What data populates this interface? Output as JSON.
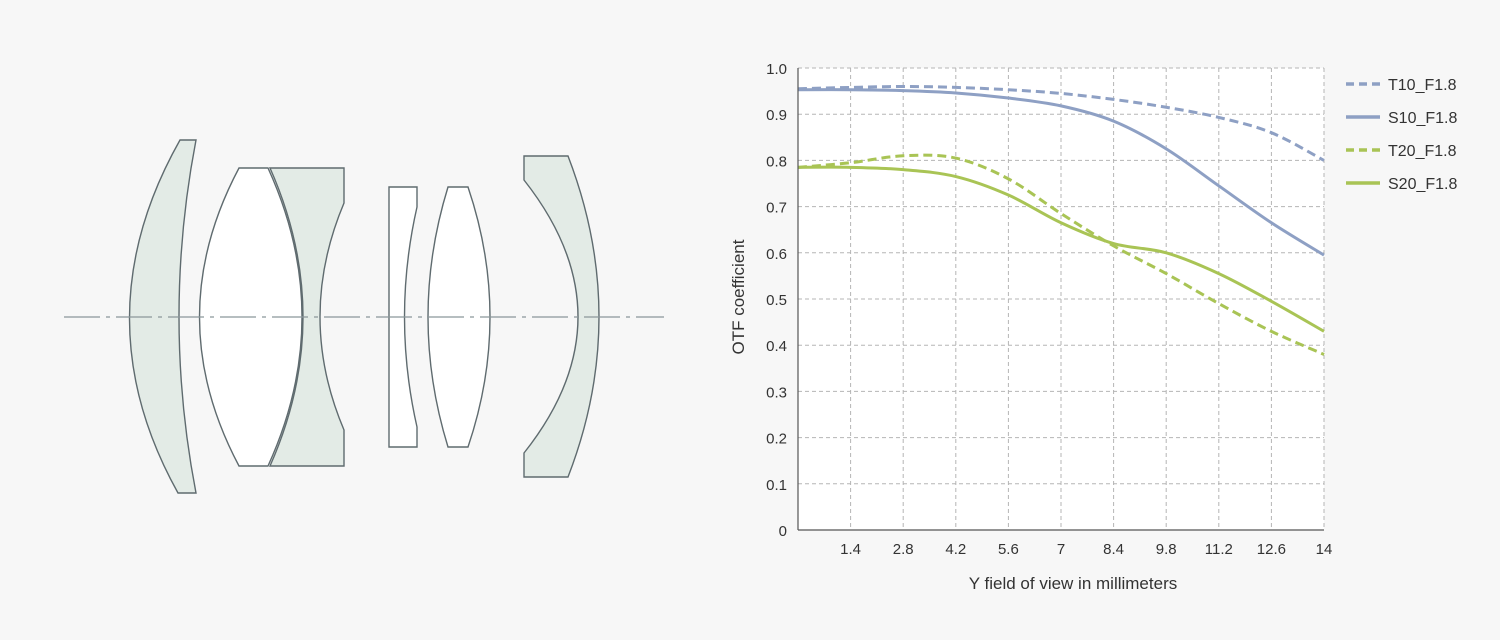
{
  "colors": {
    "background": "#f7f7f7",
    "plot_background": "#ffffff",
    "grid": "#b5b5b5",
    "axis": "#555555",
    "blue_series": "#8ea0c4",
    "green_series": "#a9c455",
    "lens_fill": "#e3ebe6",
    "lens_stroke": "#5f6b6f",
    "optical_axis": "#8a969a"
  },
  "diagram": {
    "lens_elements": [
      "front-meniscus",
      "biconvex",
      "concave",
      "thin-meniscus",
      "biconvex-small",
      "rear-meniscus"
    ]
  },
  "chart_data": {
    "type": "line",
    "xlabel": "Y field of view in millimeters",
    "ylabel": "OTF coefficient",
    "xlim": [
      0,
      14
    ],
    "ylim": [
      0,
      1.0
    ],
    "x_ticks": [
      "1.4",
      "2.8",
      "4.2",
      "5.6",
      "7",
      "8.4",
      "9.8",
      "11.2",
      "12.6",
      "14"
    ],
    "y_ticks": [
      "0",
      "0.1",
      "0.2",
      "0.3",
      "0.4",
      "0.5",
      "0.6",
      "0.7",
      "0.8",
      "0.9",
      "1.0"
    ],
    "grid": true,
    "legend_position": "right",
    "x": [
      0,
      1.4,
      2.8,
      4.2,
      5.6,
      7,
      8.4,
      9.8,
      11.2,
      12.6,
      14
    ],
    "series": [
      {
        "name": "T10_F1.8",
        "color": "#8ea0c4",
        "dash": "dashed",
        "values": [
          0.955,
          0.958,
          0.96,
          0.958,
          0.953,
          0.945,
          0.932,
          0.915,
          0.893,
          0.86,
          0.8
        ]
      },
      {
        "name": "S10_F1.8",
        "color": "#8ea0c4",
        "dash": "solid",
        "values": [
          0.953,
          0.953,
          0.951,
          0.946,
          0.935,
          0.918,
          0.885,
          0.825,
          0.745,
          0.665,
          0.595
        ]
      },
      {
        "name": "T20_F1.8",
        "color": "#a9c455",
        "dash": "dashed",
        "values": [
          0.785,
          0.795,
          0.81,
          0.805,
          0.76,
          0.685,
          0.615,
          0.555,
          0.49,
          0.43,
          0.38
        ]
      },
      {
        "name": "S20_F1.8",
        "color": "#a9c455",
        "dash": "solid",
        "values": [
          0.785,
          0.785,
          0.78,
          0.765,
          0.725,
          0.665,
          0.62,
          0.6,
          0.555,
          0.495,
          0.43
        ]
      }
    ]
  }
}
